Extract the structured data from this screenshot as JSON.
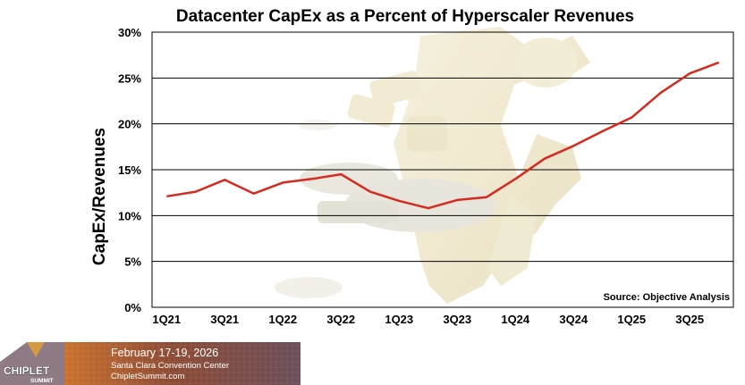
{
  "chart_data": {
    "type": "line",
    "title": "Datacenter CapEx as a Percent of Hyperscaler Revenues",
    "ylabel": "CapEx/Revenues",
    "xlabel": "",
    "ylim": [
      0,
      30
    ],
    "y_ticks": [
      "0%",
      "5%",
      "10%",
      "15%",
      "20%",
      "25%",
      "30%"
    ],
    "x_tick_labels": [
      "1Q21",
      "3Q21",
      "1Q22",
      "3Q22",
      "1Q23",
      "3Q23",
      "1Q24",
      "3Q24",
      "1Q25",
      "3Q25"
    ],
    "categories": [
      "1Q21",
      "2Q21",
      "3Q21",
      "4Q21",
      "1Q22",
      "2Q22",
      "3Q22",
      "4Q22",
      "1Q23",
      "2Q23",
      "3Q23",
      "4Q23",
      "1Q24",
      "2Q24",
      "3Q24",
      "4Q24",
      "1Q25",
      "2Q25",
      "3Q25",
      "4Q25"
    ],
    "series": [
      {
        "color": "#d42a20",
        "values": [
          12.1,
          12.6,
          13.9,
          12.4,
          13.6,
          14.0,
          14.5,
          12.6,
          11.6,
          10.8,
          11.7,
          12.0,
          14.0,
          16.2,
          17.6,
          19.2,
          20.7,
          23.4,
          25.5,
          26.7
        ]
      }
    ],
    "grid": "horizontal",
    "annotation": "Source: Objective Analysis"
  },
  "banner": {
    "dates": "February 17-19, 2026",
    "venue": "Santa Clara Convention Center",
    "site": "ChipletSummit.com"
  },
  "logo": {
    "name": "CHIPLET",
    "sub": "SUMMIT"
  }
}
